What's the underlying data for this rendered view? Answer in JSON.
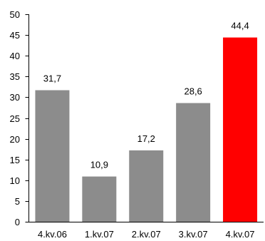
{
  "chart_data": {
    "type": "bar",
    "categories": [
      "4.kv.06",
      "1.kv.07",
      "2.kv.07",
      "3.kv.07",
      "4.kv.07"
    ],
    "values": [
      31.7,
      10.9,
      17.2,
      28.6,
      44.4
    ],
    "data_labels": [
      "31,7",
      "10,9",
      "17,2",
      "28,6",
      "44,4"
    ],
    "highlight_index": 4,
    "y_ticks": [
      0,
      5,
      10,
      15,
      20,
      25,
      30,
      35,
      40,
      45,
      50
    ],
    "ylim": [
      0,
      50
    ],
    "grid": false,
    "title": "",
    "xlabel": "",
    "ylabel": "",
    "colors": {
      "bar": "#8c8c8c",
      "highlight": "#ff0000",
      "axis": "#000000"
    }
  }
}
